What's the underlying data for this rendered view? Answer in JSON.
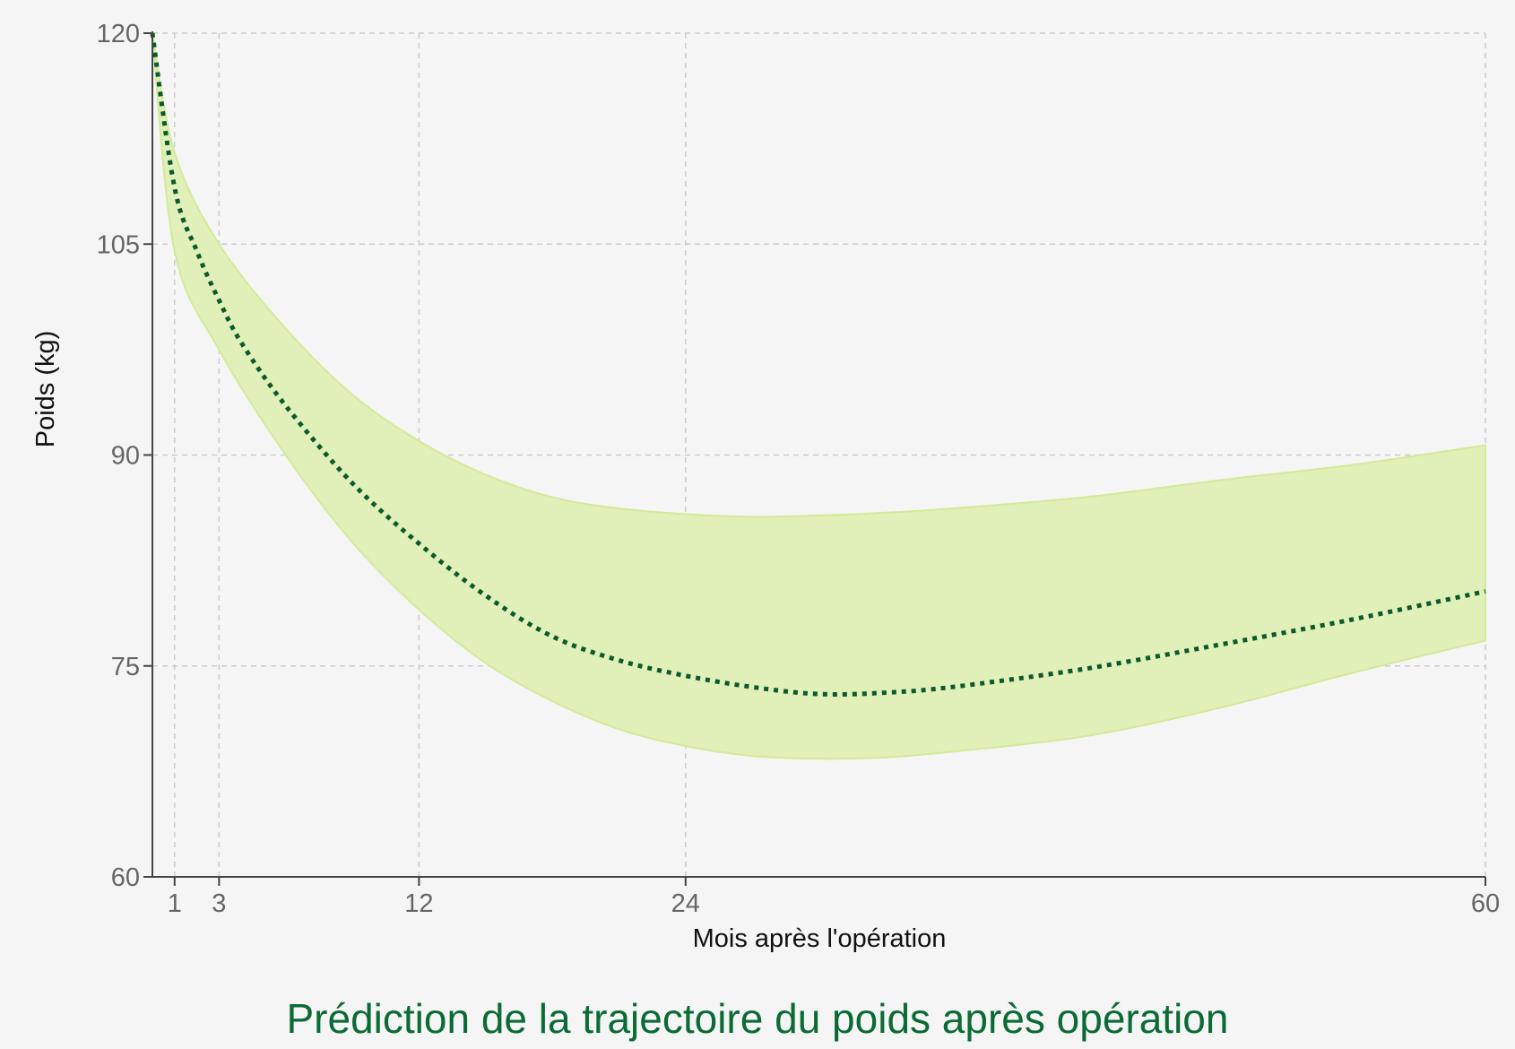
{
  "chart_data": {
    "type": "area",
    "title": "Prédiction de la trajectoire du poids après opération",
    "xlabel": "Mois après l'opération",
    "ylabel": "Poids (kg)",
    "xlim": [
      0,
      60
    ],
    "ylim": [
      60,
      120
    ],
    "x_ticks": [
      1,
      3,
      12,
      24,
      60
    ],
    "y_ticks": [
      60,
      75,
      90,
      105,
      120
    ],
    "grid": true,
    "series": [
      {
        "role": "band",
        "x": [
          1,
          3,
          6,
          9,
          12,
          15,
          18,
          21,
          24,
          27,
          30,
          33,
          36,
          42,
          48,
          54,
          60
        ],
        "upper": [
          111.5,
          105.0,
          99.0,
          94.3,
          91.0,
          88.6,
          87.0,
          86.2,
          85.8,
          85.6,
          85.7,
          85.9,
          86.2,
          87.0,
          88.2,
          89.3,
          90.7
        ],
        "lower": [
          104.5,
          97.5,
          90.0,
          83.8,
          79.0,
          75.2,
          72.5,
          70.5,
          69.3,
          68.6,
          68.4,
          68.5,
          68.9,
          70.0,
          72.0,
          74.5,
          76.8
        ]
      },
      {
        "role": "prediction",
        "x": [
          0,
          1,
          2,
          3,
          4,
          6,
          9,
          12,
          15,
          18,
          21,
          24,
          27,
          30,
          33,
          36,
          42,
          48,
          54,
          60
        ],
        "y": [
          120,
          109.0,
          104.5,
          101.0,
          98.0,
          93.5,
          88.0,
          83.7,
          80.0,
          77.1,
          75.4,
          74.3,
          73.5,
          73.0,
          73.1,
          73.5,
          74.8,
          76.5,
          78.3,
          80.3
        ]
      }
    ],
    "colors": {
      "band_fill": "#e1efb9",
      "band_stroke": "#d3ea9a",
      "prediction_line": "#0a5a2c",
      "grid": "#cccccc",
      "axis": "#444444",
      "title": "#0b6b35"
    }
  }
}
